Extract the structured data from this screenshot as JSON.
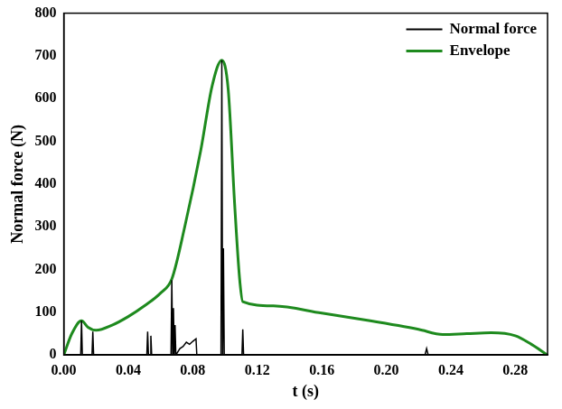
{
  "chart_data": {
    "type": "line",
    "x_label": "t (s)",
    "y_label": "Normal force (N)",
    "xlim": [
      0,
      0.3
    ],
    "ylim": [
      0,
      800
    ],
    "xticks": [
      {
        "value": 0,
        "label": "0.00"
      },
      0.04,
      0.08,
      0.12,
      0.16,
      {
        "value": 0.2,
        "label": "0.20"
      },
      0.24,
      0.28
    ],
    "yticks": [
      0,
      100,
      200,
      300,
      400,
      500,
      600,
      700,
      800
    ],
    "grid": false,
    "legend": "upper right",
    "series": [
      {
        "name": "Normal force",
        "color": "#000000",
        "x": [
          0,
          0.0105,
          0.011,
          0.0115,
          0.0175,
          0.018,
          0.0185,
          0.0515,
          0.052,
          0.0525,
          0.0535,
          0.054,
          0.0545,
          0.0665,
          0.067,
          0.0675,
          0.068,
          0.0685,
          0.069,
          0.0695,
          0.072,
          0.074,
          0.076,
          0.078,
          0.08,
          0.082,
          0.0825,
          0.0975,
          0.098,
          0.0985,
          0.099,
          0.0995,
          0.1105,
          0.111,
          0.1115,
          0.224,
          0.225,
          0.226,
          0.3
        ],
        "values": [
          0,
          0,
          80,
          0,
          0,
          55,
          0,
          0,
          55,
          0,
          0,
          45,
          0,
          0,
          175,
          0,
          110,
          0,
          70,
          0,
          15,
          20,
          30,
          25,
          32,
          38,
          0,
          0,
          690,
          0,
          250,
          0,
          0,
          60,
          0,
          0,
          15,
          0,
          0
        ]
      },
      {
        "name": "Envelope",
        "color": "#1e8a1e",
        "x": [
          0,
          0.005,
          0.011,
          0.015,
          0.02,
          0.03,
          0.04,
          0.05,
          0.06,
          0.067,
          0.075,
          0.085,
          0.092,
          0.098,
          0.102,
          0.106,
          0.109,
          0.111,
          0.13,
          0.16,
          0.19,
          0.22,
          0.235,
          0.25,
          0.265,
          0.28,
          0.29,
          0.3
        ],
        "values": [
          0,
          50,
          80,
          65,
          58,
          70,
          90,
          115,
          145,
          178,
          300,
          480,
          630,
          690,
          620,
          350,
          180,
          125,
          115,
          98,
          80,
          60,
          48,
          50,
          52,
          45,
          25,
          0
        ]
      }
    ]
  }
}
